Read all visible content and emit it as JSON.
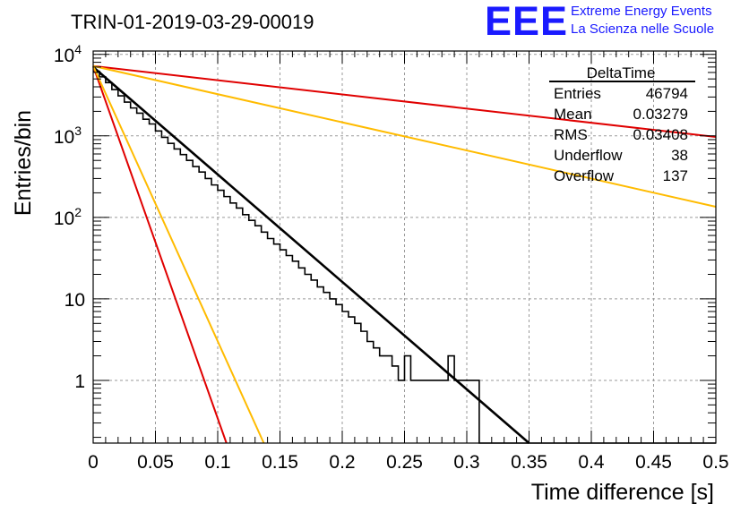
{
  "header": {
    "run_id": "TRIN-01-2019-03-29-00019",
    "logo_text": "EEE",
    "logo_line1": "Extreme Energy Events",
    "logo_line2": "La Scienza nelle Scuole"
  },
  "colors": {
    "logo_blue": "#1a1aff",
    "histogram": "#000000",
    "fit_black": "#000000",
    "fit_red": "#e00000",
    "fit_orange": "#ffbb00",
    "grid": "#9a9a9a"
  },
  "stats_box": {
    "title": "DeltaTime",
    "rows": [
      {
        "label": "Entries",
        "value": "46794"
      },
      {
        "label": "Mean",
        "value": "0.03279"
      },
      {
        "label": "RMS",
        "value": "0.03408"
      },
      {
        "label": "Underflow",
        "value": "38"
      },
      {
        "label": "Overflow",
        "value": "137"
      }
    ]
  },
  "chart_data": {
    "type": "histogram",
    "xlabel": "Time difference [s]",
    "ylabel": "Entries/bin",
    "xlim": [
      0,
      0.5
    ],
    "ylim": [
      0.17,
      11000
    ],
    "y_scale": "log",
    "grid": true,
    "x_ticks": [
      "0",
      "0.05",
      "0.1",
      "0.15",
      "0.2",
      "0.25",
      "0.3",
      "0.35",
      "0.4",
      "0.45",
      "0.5"
    ],
    "y_ticks": [
      {
        "value": 1,
        "label": "1"
      },
      {
        "value": 10,
        "label": "10"
      },
      {
        "value": 100,
        "label": "10^2"
      },
      {
        "value": 1000,
        "label": "10^3"
      },
      {
        "value": 10000,
        "label": "10^4"
      }
    ],
    "bin_width": 0.005,
    "histogram": {
      "bin_edges_start": 0,
      "counts": [
        6200,
        5300,
        4500,
        3700,
        3100,
        2600,
        2200,
        1900,
        1600,
        1400,
        1150,
        960,
        810,
        690,
        590,
        500,
        420,
        360,
        300,
        250,
        215,
        180,
        150,
        130,
        108,
        92,
        79,
        66,
        55,
        47,
        40,
        34,
        29,
        24,
        20,
        17,
        14,
        12,
        10,
        8.5,
        7,
        6,
        5,
        4,
        3,
        2.5,
        2,
        2,
        1.5,
        1,
        2,
        1,
        1,
        1,
        1,
        1,
        1,
        2,
        1,
        1,
        1,
        1,
        0,
        0,
        0,
        0,
        0,
        0,
        0,
        0,
        0,
        0,
        0,
        0,
        0,
        0,
        0,
        0,
        0,
        0,
        0,
        0,
        0,
        0,
        0,
        0,
        0,
        0,
        0,
        0,
        0,
        0,
        0,
        0,
        0,
        0,
        0,
        0,
        0,
        0
      ]
    },
    "fits": [
      {
        "color": "#000000",
        "endpoints": [
          [
            0,
            7000
          ],
          [
            0.35,
            0.17
          ]
        ]
      },
      {
        "color": "#e00000",
        "endpoints": [
          [
            0,
            7200
          ],
          [
            0.5,
            970
          ]
        ]
      },
      {
        "color": "#ffbb00",
        "endpoints": [
          [
            0,
            7200
          ],
          [
            0.5,
            135
          ]
        ]
      },
      {
        "color": "#e00000",
        "endpoints": [
          [
            0,
            7200
          ],
          [
            0.107,
            0.17
          ]
        ]
      },
      {
        "color": "#ffbb00",
        "endpoints": [
          [
            0,
            7200
          ],
          [
            0.137,
            0.17
          ]
        ]
      }
    ]
  }
}
